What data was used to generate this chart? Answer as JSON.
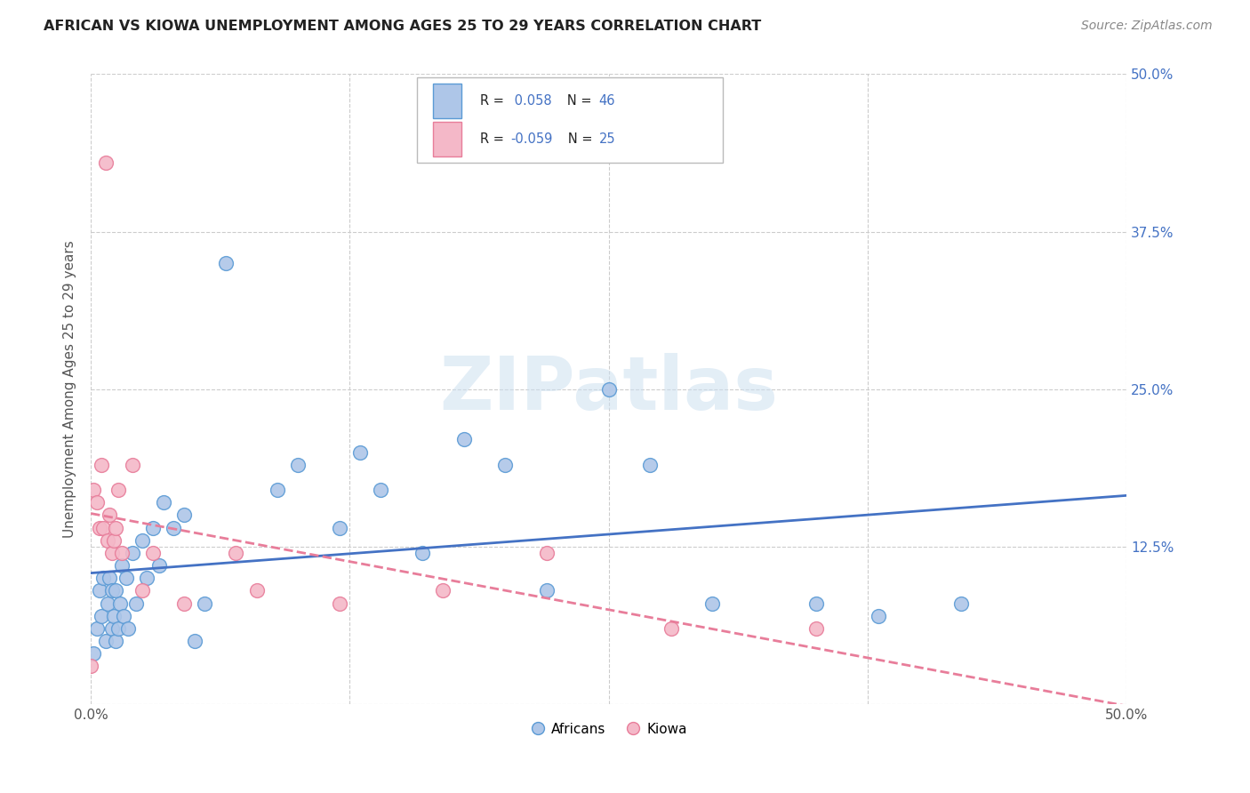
{
  "title": "AFRICAN VS KIOWA UNEMPLOYMENT AMONG AGES 25 TO 29 YEARS CORRELATION CHART",
  "source": "Source: ZipAtlas.com",
  "ylabel": "Unemployment Among Ages 25 to 29 years",
  "xlim": [
    0,
    0.5
  ],
  "ylim": [
    0,
    0.5
  ],
  "xticks": [
    0.0,
    0.125,
    0.25,
    0.375,
    0.5
  ],
  "yticks": [
    0.0,
    0.125,
    0.25,
    0.375,
    0.5
  ],
  "xticklabels": [
    "0.0%",
    "",
    "",
    "",
    "50.0%"
  ],
  "right_yticklabels": [
    "",
    "12.5%",
    "25.0%",
    "37.5%",
    "50.0%"
  ],
  "grid_color": "#cccccc",
  "background_color": "#ffffff",
  "africans_color": "#aec6e8",
  "kiowa_color": "#f4b8c8",
  "africans_edge_color": "#5b9bd5",
  "kiowa_edge_color": "#e87d9a",
  "trend_african_color": "#4472c4",
  "trend_kiowa_color": "#e87d9a",
  "r_african": 0.058,
  "n_african": 46,
  "r_kiowa": -0.059,
  "n_kiowa": 25,
  "watermark": "ZIPatlas",
  "africans_x": [
    0.001,
    0.003,
    0.004,
    0.005,
    0.006,
    0.007,
    0.008,
    0.009,
    0.01,
    0.01,
    0.011,
    0.012,
    0.012,
    0.013,
    0.014,
    0.015,
    0.016,
    0.017,
    0.018,
    0.02,
    0.022,
    0.025,
    0.027,
    0.03,
    0.033,
    0.035,
    0.04,
    0.045,
    0.05,
    0.055,
    0.065,
    0.09,
    0.1,
    0.12,
    0.13,
    0.14,
    0.16,
    0.18,
    0.2,
    0.22,
    0.25,
    0.27,
    0.3,
    0.35,
    0.38,
    0.42
  ],
  "africans_y": [
    0.04,
    0.06,
    0.09,
    0.07,
    0.1,
    0.05,
    0.08,
    0.1,
    0.06,
    0.09,
    0.07,
    0.05,
    0.09,
    0.06,
    0.08,
    0.11,
    0.07,
    0.1,
    0.06,
    0.12,
    0.08,
    0.13,
    0.1,
    0.14,
    0.11,
    0.16,
    0.14,
    0.15,
    0.05,
    0.08,
    0.35,
    0.17,
    0.19,
    0.14,
    0.2,
    0.17,
    0.12,
    0.21,
    0.19,
    0.09,
    0.25,
    0.19,
    0.08,
    0.08,
    0.07,
    0.08
  ],
  "kiowa_x": [
    0.0,
    0.001,
    0.003,
    0.004,
    0.005,
    0.006,
    0.007,
    0.008,
    0.009,
    0.01,
    0.011,
    0.012,
    0.013,
    0.015,
    0.02,
    0.025,
    0.03,
    0.045,
    0.07,
    0.08,
    0.12,
    0.17,
    0.22,
    0.28,
    0.35
  ],
  "kiowa_y": [
    0.03,
    0.17,
    0.16,
    0.14,
    0.19,
    0.14,
    0.43,
    0.13,
    0.15,
    0.12,
    0.13,
    0.14,
    0.17,
    0.12,
    0.19,
    0.09,
    0.12,
    0.08,
    0.12,
    0.09,
    0.08,
    0.09,
    0.12,
    0.06,
    0.06
  ]
}
